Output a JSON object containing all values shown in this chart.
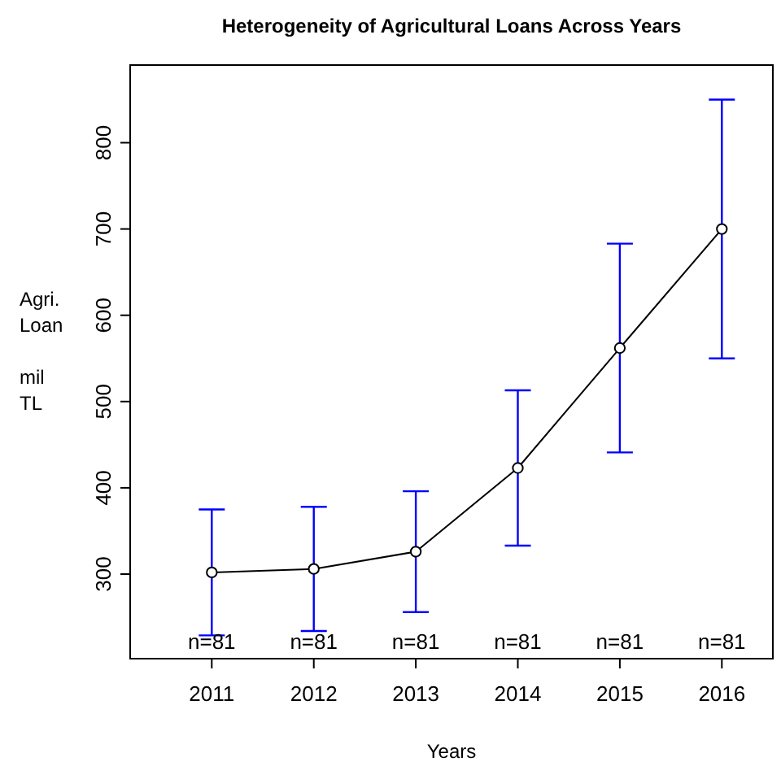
{
  "chart_data": {
    "type": "line",
    "title": "Heterogeneity of Agricultural Loans Across Years",
    "xlabel": "Years",
    "ylabel": "Agri.\nLoan\n\nmil\nTL",
    "x": [
      2011,
      2012,
      2013,
      2014,
      2015,
      2016
    ],
    "series": [
      {
        "color": "#000000",
        "values": [
          302,
          306,
          326,
          423,
          562,
          700
        ],
        "errors": [
          73,
          72,
          70,
          90,
          121,
          150
        ]
      }
    ],
    "marker": "circle",
    "line_style": "solid",
    "xlim": [
      2010.2,
      2016.5
    ],
    "xticks": [
      2011,
      2012,
      2013,
      2014,
      2015,
      2016
    ],
    "ylim": [
      202,
      890
    ],
    "yticks": [
      300,
      400,
      500,
      600,
      700,
      800
    ],
    "annotations": [
      "n=81",
      "n=81",
      "n=81",
      "n=81",
      "n=81",
      "n=81"
    ]
  }
}
